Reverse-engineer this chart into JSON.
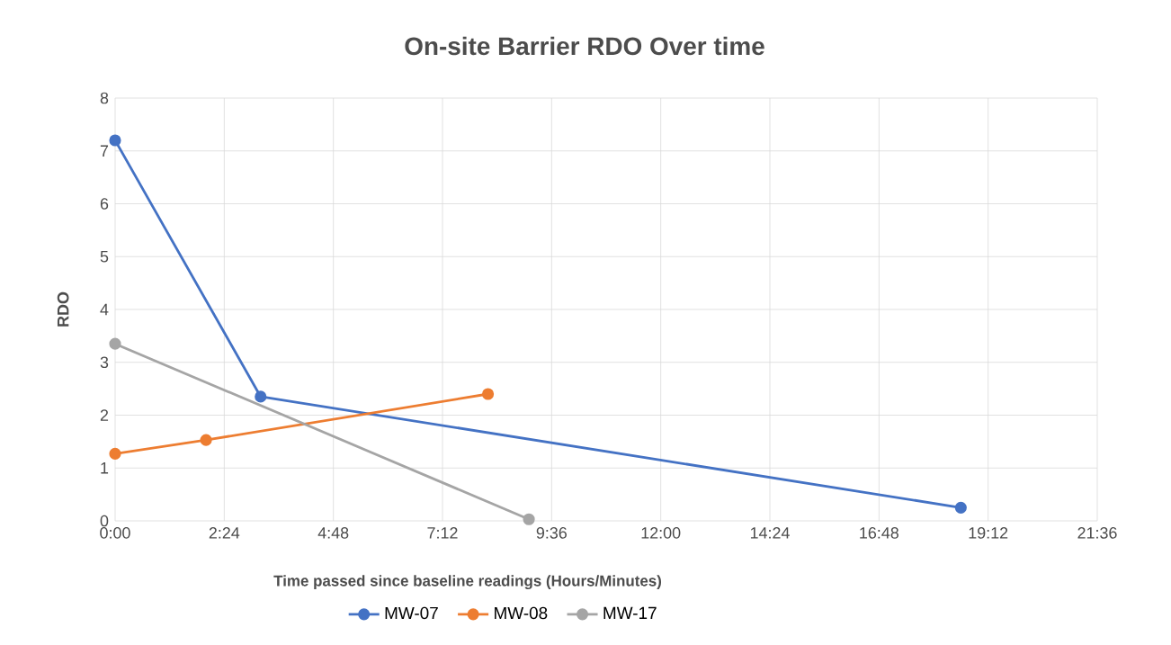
{
  "chart_data": {
    "type": "line",
    "title": "On-site Barrier RDO Over time",
    "xlabel": "Time passed since baseline readings (Hours/Minutes)",
    "ylabel": "RDO",
    "xlim": [
      0,
      21.6
    ],
    "xticks": [
      {
        "value": 0,
        "label": "0:00"
      },
      {
        "value": 2.4,
        "label": "2:24"
      },
      {
        "value": 4.8,
        "label": "4:48"
      },
      {
        "value": 7.2,
        "label": "7:12"
      },
      {
        "value": 9.6,
        "label": "9:36"
      },
      {
        "value": 12,
        "label": "12:00"
      },
      {
        "value": 14.4,
        "label": "14:24"
      },
      {
        "value": 16.8,
        "label": "16:48"
      },
      {
        "value": 19.2,
        "label": "19:12"
      },
      {
        "value": 21.6,
        "label": "21:36"
      }
    ],
    "ylim": [
      0,
      8
    ],
    "yticks": [
      0,
      1,
      2,
      3,
      4,
      5,
      6,
      7,
      8
    ],
    "grid": true,
    "legend": "bottom",
    "marker": "circle",
    "line_style": "solid",
    "series": [
      {
        "name": "MW-07",
        "color": "#4472c4",
        "x": [
          0,
          3.2,
          18.6
        ],
        "values": [
          7.2,
          2.35,
          0.25
        ]
      },
      {
        "name": "MW-08",
        "color": "#ed7d31",
        "x": [
          0,
          2.0,
          8.2
        ],
        "values": [
          1.27,
          1.53,
          2.4
        ]
      },
      {
        "name": "MW-17",
        "color": "#a5a5a5",
        "x": [
          0,
          9.1
        ],
        "values": [
          3.35,
          0.03
        ]
      }
    ]
  }
}
